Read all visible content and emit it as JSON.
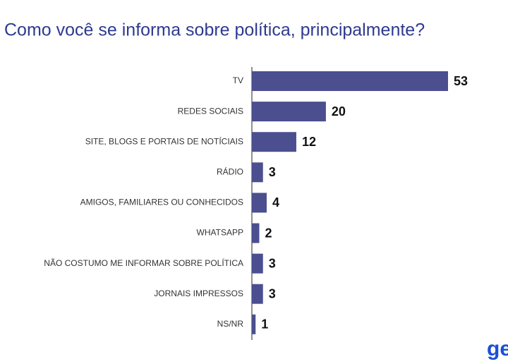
{
  "chart_data": {
    "type": "bar",
    "orientation": "horizontal",
    "title": "Como você se informa sobre política, principalmente?",
    "categories": [
      "TV",
      "REDES SOCIAIS",
      "SITE, BLOGS E PORTAIS DE NOTÍCIAIS",
      "RÁDIO",
      "AMIGOS, FAMILIARES OU CONHECIDOS",
      "WHATSAPP",
      "NÃO COSTUMO ME INFORMAR SOBRE POLÍTICA",
      "JORNAIS IMPRESSOS",
      "NS/NR"
    ],
    "values": [
      53,
      20,
      12,
      3,
      4,
      2,
      3,
      3,
      1
    ],
    "color": "#4b4f8f"
  },
  "logo": "ge"
}
